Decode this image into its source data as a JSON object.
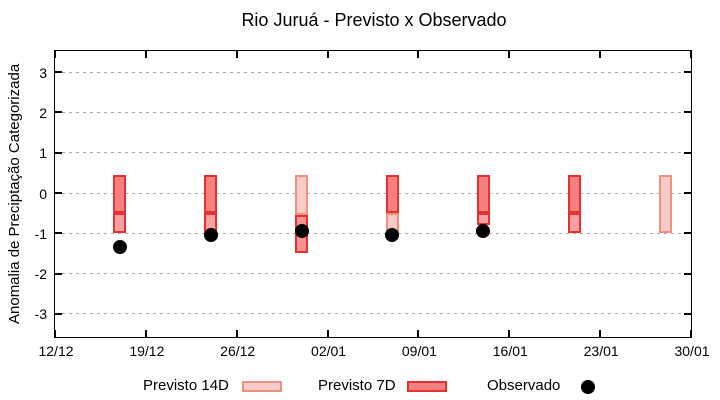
{
  "chart_data": {
    "type": "bar",
    "title": "Rio Juruá - Previsto x Observado",
    "ylabel": "Anomalia de Preciptação Categorizada",
    "xlabel": "",
    "ylim": [
      -3.5,
      3.5
    ],
    "grid": "horizontal-dashed",
    "y_ticks": [
      {
        "value": 3,
        "label": "3"
      },
      {
        "value": 2,
        "label": "2"
      },
      {
        "value": 1,
        "label": "1"
      },
      {
        "value": 0,
        "label": "0"
      },
      {
        "value": -1,
        "label": "-1"
      },
      {
        "value": -2,
        "label": "-2"
      },
      {
        "value": -3,
        "label": "-3"
      }
    ],
    "x_ticks": [
      {
        "day": 0,
        "label": "12/12"
      },
      {
        "day": 7,
        "label": "19/12"
      },
      {
        "day": 14,
        "label": "26/12"
      },
      {
        "day": 21,
        "label": "02/01"
      },
      {
        "day": 28,
        "label": "09/01"
      },
      {
        "day": 35,
        "label": "16/01"
      },
      {
        "day": 42,
        "label": "23/01"
      },
      {
        "day": 49,
        "label": "30/01"
      }
    ],
    "x_range_days": [
      0,
      49
    ],
    "colors": {
      "previsto7d_fill": "#f58080",
      "previsto7d_border": "#e53131",
      "overlap_fill": "#fba0a0",
      "previsto7d_dark_fill": "#f99191",
      "previsto14d_fill": "#facbc6",
      "previsto14d_border": "#f0917f",
      "observed": "#000000",
      "grid": "#a9a9a9",
      "frame": "#000000"
    },
    "box_styles": {
      "p7": {
        "fill": "previsto7d_fill",
        "border": "previsto7d_border"
      },
      "p7p14": {
        "fill": "overlap_fill",
        "border": "previsto7d_border"
      },
      "p7low": {
        "fill": "previsto7d_dark_fill",
        "border": "previsto7d_border"
      },
      "p14": {
        "fill": "previsto14d_fill",
        "border": "previsto14d_border"
      }
    },
    "clusters": [
      {
        "date": "17/12",
        "day": 5,
        "boxes": [
          {
            "from": 0.45,
            "to": -0.5,
            "style": "p7"
          },
          {
            "from": -0.5,
            "to": -1.0,
            "style": "p7p14"
          }
        ],
        "observed": -1.35
      },
      {
        "date": "24/12",
        "day": 12,
        "boxes": [
          {
            "from": 0.45,
            "to": -0.5,
            "style": "p7"
          },
          {
            "from": -0.5,
            "to": -1.0,
            "style": "p7p14"
          }
        ],
        "observed": -1.05
      },
      {
        "date": "31/12",
        "day": 19,
        "boxes": [
          {
            "from": 0.45,
            "to": -0.55,
            "style": "p14"
          },
          {
            "from": -0.55,
            "to": -1.5,
            "style": "p7low"
          }
        ],
        "observed": -0.95
      },
      {
        "date": "07/01",
        "day": 26,
        "boxes": [
          {
            "from": 0.45,
            "to": -0.5,
            "style": "p7"
          },
          {
            "from": -0.5,
            "to": -1.0,
            "style": "p14"
          }
        ],
        "observed": -1.05
      },
      {
        "date": "14/01",
        "day": 33,
        "boxes": [
          {
            "from": 0.45,
            "to": -0.5,
            "style": "p7"
          },
          {
            "from": -0.5,
            "to": -0.8,
            "style": "p7p14"
          }
        ],
        "observed": -0.95
      },
      {
        "date": "21/01",
        "day": 40,
        "boxes": [
          {
            "from": 0.45,
            "to": -0.5,
            "style": "p7"
          },
          {
            "from": -0.5,
            "to": -1.0,
            "style": "p7p14"
          }
        ],
        "observed": null
      },
      {
        "date": "28/01",
        "day": 47,
        "boxes": [
          {
            "from": 0.45,
            "to": -1.0,
            "style": "p14"
          }
        ],
        "observed": null
      }
    ],
    "legend": {
      "position": "bottom",
      "items": [
        {
          "label": "Previsto 14D",
          "swatch": "previsto14d"
        },
        {
          "label": "Previsto 7D",
          "swatch": "previsto7d"
        },
        {
          "label": "Observado",
          "swatch": "observed-dot"
        }
      ]
    }
  }
}
